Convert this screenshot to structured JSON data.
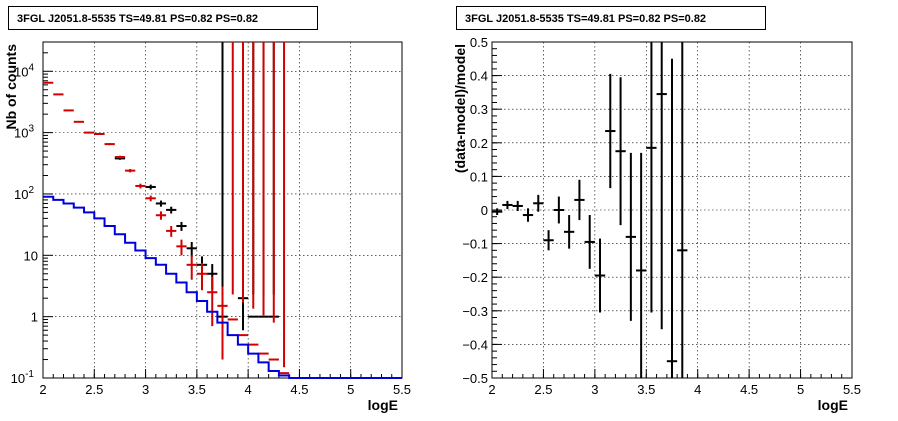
{
  "titles": [
    "3FGL J2051.8-5535 TS=49.81 PS=0.82 PS=0.82",
    "3FGL J2051.8-5535 TS=49.81 PS=0.82 PS=0.82"
  ],
  "chart_data": [
    {
      "type": "line",
      "title": "3FGL J2051.8-5535 TS=49.81 PS=0.82 PS=0.82",
      "xlabel": "logE",
      "ylabel": "Nb of counts",
      "yscale": "log",
      "xlim": [
        2,
        5.5
      ],
      "ylim": [
        0.1,
        30000
      ],
      "x_ticks": [
        "2",
        "2.5",
        "3",
        "3.5",
        "4",
        "4.5",
        "5",
        "5.5"
      ],
      "y_ticks": [
        "10^{-1}",
        "1",
        "10",
        "10^{2}",
        "10^{3}",
        "10^{4}"
      ],
      "grid": true,
      "series": [
        {
          "color": "#000000",
          "style": "errorbar",
          "x": [
            2.55,
            2.75,
            3.05,
            3.15,
            3.25,
            3.35,
            3.45,
            3.55,
            3.65,
            3.75,
            3.95,
            4.05,
            4.15,
            4.25
          ],
          "y": [
            950,
            380,
            130,
            70,
            55,
            30,
            13,
            7,
            5,
            1,
            2,
            1,
            1,
            1
          ],
          "yerr_lo": [
            30,
            20,
            12,
            8,
            7,
            5,
            3.5,
            2.6,
            2.2,
            0.9,
            1.4,
            0.9,
            0.9,
            0.9
          ],
          "yerr_hi": [
            30,
            20,
            12,
            8,
            7,
            5,
            3.5,
            2.6,
            2.2,
            1.3,
            1.6,
            1.3,
            1.3,
            1.3
          ]
        },
        {
          "color": "#d40000",
          "style": "errorbar",
          "x": [
            2.05,
            2.15,
            2.25,
            2.35,
            2.45,
            2.55,
            2.65,
            2.75,
            2.85,
            2.95,
            3.05,
            3.15,
            3.25,
            3.35,
            3.45,
            3.55,
            3.65,
            3.75,
            3.85,
            3.95,
            4.05,
            4.15,
            4.25,
            4.35
          ],
          "y": [
            6500,
            4200,
            2300,
            1500,
            1000,
            950,
            650,
            400,
            240,
            135,
            85,
            45,
            25,
            14,
            7,
            5,
            2.5,
            1.5,
            0.9,
            0.5,
            0.35,
            0.25,
            0.2,
            0.12
          ],
          "yerr_lo": [
            80,
            65,
            48,
            39,
            32,
            31,
            25,
            20,
            15,
            12,
            9,
            7,
            5,
            4,
            3,
            2.3,
            1.8,
            1.3,
            0.8,
            0.45,
            0.25,
            0.15,
            0.1,
            0.02
          ],
          "yerr_hi": [
            80,
            65,
            48,
            39,
            32,
            31,
            25,
            20,
            15,
            12,
            9,
            7,
            5,
            4,
            3,
            2.5,
            2.0,
            1.6,
            1.4,
            1.2,
            1.0,
            0.8,
            0.6,
            0.03
          ]
        },
        {
          "color": "#0000dd",
          "style": "step",
          "x": [
            2.0,
            2.1,
            2.2,
            2.3,
            2.4,
            2.5,
            2.6,
            2.7,
            2.8,
            2.9,
            3.0,
            3.1,
            3.2,
            3.3,
            3.4,
            3.5,
            3.6,
            3.7,
            3.8,
            3.9,
            4.0,
            4.1,
            4.2,
            4.3,
            4.4,
            4.5,
            4.6,
            4.7,
            4.8,
            4.9,
            5.0,
            5.1,
            5.2,
            5.3,
            5.4
          ],
          "y": [
            90,
            80,
            70,
            60,
            50,
            40,
            30,
            22,
            16,
            12,
            9,
            7,
            5,
            3.6,
            2.5,
            1.8,
            1.2,
            0.8,
            0.5,
            0.35,
            0.25,
            0.18,
            0.13,
            0.11,
            0.1,
            0.1,
            0.1,
            0.1,
            0.1,
            0.1,
            0.1,
            0.1,
            0.1,
            0.1,
            0.1
          ]
        }
      ]
    },
    {
      "type": "scatter",
      "title": "3FGL J2051.8-5535 TS=49.81 PS=0.82 PS=0.82",
      "xlabel": "logE",
      "ylabel": "(data-model)/model",
      "xlim": [
        2,
        5.5
      ],
      "ylim": [
        -0.5,
        0.5
      ],
      "x_ticks": [
        "2",
        "2.5",
        "3",
        "3.5",
        "4",
        "4.5",
        "5",
        "5.5"
      ],
      "y_ticks": [
        "−0.5",
        "−0.4",
        "−0.3",
        "−0.2",
        "−0.1",
        "0",
        "0.1",
        "0.2",
        "0.3",
        "0.4",
        "0.5"
      ],
      "grid": true,
      "series": [
        {
          "color": "#000000",
          "style": "errorbar",
          "x": [
            2.05,
            2.15,
            2.25,
            2.35,
            2.45,
            2.55,
            2.65,
            2.75,
            2.85,
            2.95,
            3.05,
            3.15,
            3.25,
            3.35,
            3.45,
            3.55,
            3.65,
            3.75,
            3.85
          ],
          "y": [
            -0.005,
            0.015,
            0.012,
            -0.015,
            0.02,
            -0.09,
            0.0,
            -0.065,
            0.03,
            -0.095,
            -0.195,
            0.235,
            0.175,
            -0.08,
            -0.18,
            0.185,
            0.345,
            -0.45,
            -0.12
          ],
          "yerr": [
            0.01,
            0.012,
            0.015,
            0.02,
            0.025,
            0.03,
            0.04,
            0.05,
            0.06,
            0.08,
            0.11,
            0.17,
            0.22,
            0.25,
            0.35,
            0.49,
            0.7,
            0.9,
            1.0
          ]
        }
      ]
    }
  ]
}
